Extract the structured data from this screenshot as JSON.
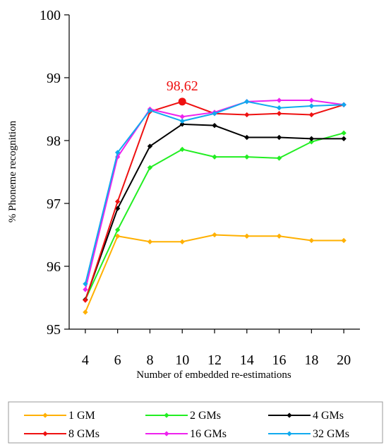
{
  "chart_data": {
    "type": "line",
    "xlabel": "Number of embedded re-estimations",
    "ylabel": "% Phoneme recognition",
    "x": [
      4,
      6,
      8,
      10,
      12,
      14,
      16,
      18,
      20
    ],
    "xlim": [
      3,
      21
    ],
    "ylim": [
      95,
      100
    ],
    "yticks": [
      95,
      96,
      97,
      98,
      99,
      100
    ],
    "xticks": [
      4,
      6,
      8,
      10,
      12,
      14,
      16,
      18,
      20
    ],
    "grid": false,
    "legend_position": "bottom",
    "series": [
      {
        "name": "1 GM",
        "color": "#FFB000",
        "values": [
          95.27,
          96.48,
          96.39,
          96.39,
          96.5,
          96.48,
          96.48,
          96.41,
          96.41
        ]
      },
      {
        "name": "2 GMs",
        "color": "#22EE22",
        "values": [
          95.47,
          96.58,
          97.57,
          97.86,
          97.74,
          97.74,
          97.72,
          97.98,
          98.12
        ]
      },
      {
        "name": "4 GMs",
        "color": "#000000",
        "values": [
          95.47,
          96.92,
          97.91,
          98.26,
          98.24,
          98.05,
          98.05,
          98.03,
          98.03
        ]
      },
      {
        "name": "8 GMs",
        "color": "#EE1111",
        "values": [
          95.46,
          97.03,
          98.46,
          98.62,
          98.43,
          98.41,
          98.43,
          98.41,
          98.57
        ]
      },
      {
        "name": "16 GMs",
        "color": "#EE22EE",
        "values": [
          95.63,
          97.74,
          98.5,
          98.38,
          98.45,
          98.62,
          98.64,
          98.64,
          98.57
        ]
      },
      {
        "name": "32 GMs",
        "color": "#11AAEE",
        "values": [
          95.72,
          97.81,
          98.48,
          98.31,
          98.43,
          98.62,
          98.52,
          98.55,
          98.57
        ]
      }
    ],
    "annotation": {
      "text": "98,62",
      "series_index": 3,
      "point_index": 3,
      "color": "#EE1111"
    }
  }
}
